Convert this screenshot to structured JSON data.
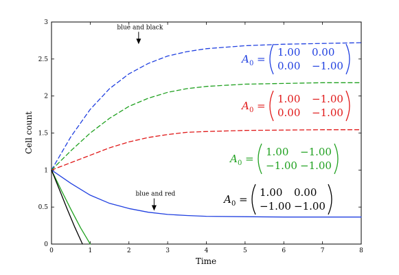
{
  "chart_data": {
    "type": "line",
    "title": "",
    "xlabel": "Time",
    "ylabel": "Cell count",
    "xlim": [
      0,
      8
    ],
    "ylim": [
      0,
      3
    ],
    "x_ticks": [
      "0",
      "1",
      "2",
      "3",
      "4",
      "5",
      "6",
      "7",
      "8"
    ],
    "y_ticks": [
      "0",
      "0.5",
      "1",
      "1.5",
      "2",
      "2.5",
      "3"
    ],
    "grid": false,
    "legend": "none",
    "colors": {
      "blue": "#1f3fe0",
      "green": "#1ea01e",
      "red": "#e01818",
      "black": "#000000"
    },
    "series": [
      {
        "color": "blue",
        "dash": "dashed",
        "x": [
          0,
          0.5,
          1,
          1.5,
          2,
          2.5,
          3,
          3.5,
          4,
          5,
          6,
          7,
          8
        ],
        "y": [
          1,
          1.45,
          1.82,
          2.1,
          2.3,
          2.44,
          2.54,
          2.6,
          2.64,
          2.68,
          2.7,
          2.71,
          2.72
        ]
      },
      {
        "color": "green",
        "dash": "dashed",
        "x": [
          0,
          0.5,
          1,
          1.5,
          2,
          2.5,
          3,
          3.5,
          4,
          5,
          6,
          7,
          8
        ],
        "y": [
          1,
          1.26,
          1.5,
          1.7,
          1.86,
          1.97,
          2.05,
          2.1,
          2.13,
          2.16,
          2.17,
          2.18,
          2.18
        ]
      },
      {
        "color": "red",
        "dash": "dashed",
        "x": [
          0,
          0.5,
          1,
          1.5,
          2,
          2.5,
          3,
          3.5,
          4,
          5,
          6,
          7,
          8
        ],
        "y": [
          1,
          1.1,
          1.2,
          1.3,
          1.38,
          1.44,
          1.48,
          1.51,
          1.52,
          1.535,
          1.54,
          1.545,
          1.545
        ]
      },
      {
        "color": "blue",
        "dash": "solid",
        "x": [
          0,
          0.5,
          1,
          1.5,
          2,
          2.5,
          3,
          3.5,
          4,
          5,
          6,
          7,
          8
        ],
        "y": [
          1,
          0.82,
          0.66,
          0.55,
          0.48,
          0.43,
          0.4,
          0.385,
          0.375,
          0.37,
          0.365,
          0.365,
          0.365
        ]
      },
      {
        "color": "green",
        "dash": "solid",
        "x": [
          0,
          0.25,
          0.5,
          0.75,
          1.0
        ],
        "y": [
          1,
          0.73,
          0.47,
          0.22,
          0
        ]
      },
      {
        "color": "black",
        "dash": "solid",
        "x": [
          0,
          0.2,
          0.4,
          0.6,
          0.8
        ],
        "y": [
          1,
          0.74,
          0.48,
          0.23,
          0
        ]
      }
    ],
    "annotations": [
      {
        "text": "blue and black",
        "x": 2.25,
        "y": 2.7
      },
      {
        "text": "blue and red",
        "x": 2.65,
        "y": 0.45
      }
    ],
    "matrix_labels": [
      {
        "label": "A",
        "sub": "0",
        "color": "blue",
        "rows": [
          [
            "1.00",
            "0.00"
          ],
          [
            "0.00",
            "−1.00"
          ]
        ]
      },
      {
        "label": "A",
        "sub": "0",
        "color": "red",
        "rows": [
          [
            "1.00",
            "−1.00"
          ],
          [
            "0.00",
            "−1.00"
          ]
        ]
      },
      {
        "label": "A",
        "sub": "0",
        "color": "green",
        "rows": [
          [
            "1.00",
            "−1.00"
          ],
          [
            "−1.00",
            "−1.00"
          ]
        ]
      },
      {
        "label": "A",
        "sub": "0",
        "color": "black",
        "rows": [
          [
            "1.00",
            "0.00"
          ],
          [
            "−1.00",
            "−1.00"
          ]
        ]
      }
    ]
  }
}
